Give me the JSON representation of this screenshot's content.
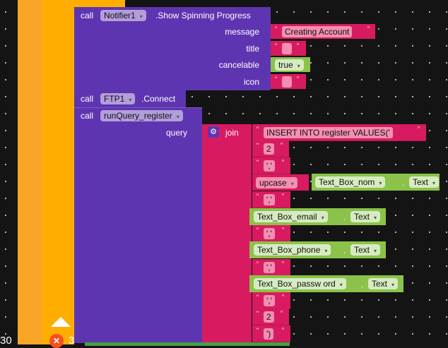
{
  "colors": {
    "procedure": "#5e35b1",
    "text": "#d81b60",
    "component": "#8bc34a",
    "control": "#ffab00"
  },
  "notifier": {
    "call": "call",
    "component": "Notifier1",
    "method": ".Show  Spinning Progress",
    "params": [
      "message",
      "title",
      "cancelable",
      "icon"
    ],
    "message": "Creating Account",
    "title": "",
    "cancelable": "true",
    "icon": ""
  },
  "ftp": {
    "call": "call",
    "component": "FTP1",
    "method": ".Connect"
  },
  "runquery": {
    "call": "call",
    "procedure": "runQuery_register",
    "param": "query"
  },
  "join": {
    "label": "join",
    "icon": "gear-icon",
    "items": [
      "INSERT INTO register VALUES('",
      "2",
      "','",
      "upcase|Text_Box_nom",
      "','",
      "Text_Box_email",
      "','",
      "Text_Box_phone",
      "','",
      "Text_Box_passw ord",
      "','",
      "2",
      "')"
    ]
  },
  "upcase": "upcase",
  "text_prop": "Text",
  "dot": ".",
  "status": {
    "warnings": "30",
    "errors": "3"
  }
}
